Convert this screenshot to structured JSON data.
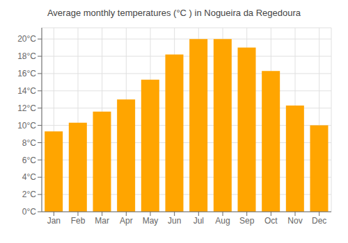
{
  "chart_data": {
    "type": "bar",
    "title": "Average monthly temperatures (°C ) in Nogueira da Regedoura",
    "categories": [
      "Jan",
      "Feb",
      "Mar",
      "Apr",
      "May",
      "Jun",
      "Jul",
      "Aug",
      "Sep",
      "Oct",
      "Nov",
      "Dec"
    ],
    "values": [
      9.3,
      10.3,
      11.6,
      13.0,
      15.3,
      18.2,
      20.0,
      20.0,
      19.0,
      16.3,
      12.3,
      10.0
    ],
    "color": "#FFA500",
    "ylim": [
      0,
      21.3
    ],
    "yticks": [
      {
        "value": 0,
        "label": "0°C"
      },
      {
        "value": 2,
        "label": "2°C"
      },
      {
        "value": 4,
        "label": "4°C"
      },
      {
        "value": 6,
        "label": "6°C"
      },
      {
        "value": 8,
        "label": "8°C"
      },
      {
        "value": 10,
        "label": "10°C"
      },
      {
        "value": 12,
        "label": "12°C"
      },
      {
        "value": 14,
        "label": "14°C"
      },
      {
        "value": 16,
        "label": "16°C"
      },
      {
        "value": 18,
        "label": "18°C"
      },
      {
        "value": 20,
        "label": "20°C"
      }
    ],
    "grid": true
  }
}
